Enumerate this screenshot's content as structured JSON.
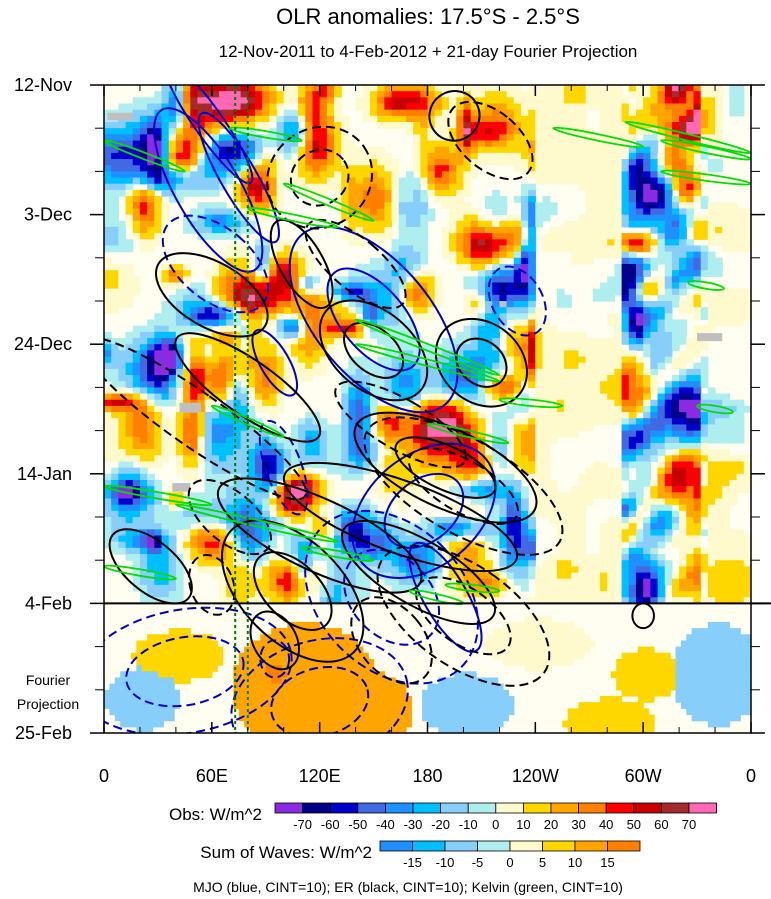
{
  "chart_data": {
    "type": "heatmap",
    "title": "OLR anomalies: 17.5°S - 2.5°S",
    "subtitle": "12-Nov-2011 to 4-Feb-2012 + 21-day Fourier Projection",
    "x_axis": {
      "ticks": [
        {
          "label": "0",
          "lon": 0
        },
        {
          "label": "60E",
          "lon": 60
        },
        {
          "label": "120E",
          "lon": 120
        },
        {
          "label": "180",
          "lon": 180
        },
        {
          "label": "120W",
          "lon": 240
        },
        {
          "label": "60W",
          "lon": 300
        },
        {
          "label": "0",
          "lon": 360
        }
      ],
      "range": [
        0,
        360
      ]
    },
    "y_axis": {
      "ticks": [
        {
          "label": "12-Nov",
          "day": 0
        },
        {
          "label": "3-Dec",
          "day": 21
        },
        {
          "label": "24-Dec",
          "day": 42
        },
        {
          "label": "14-Jan",
          "day": 63
        },
        {
          "label": "4-Feb",
          "day": 84
        },
        {
          "label": "25-Feb",
          "day": 105
        }
      ],
      "range": [
        0,
        105
      ],
      "direction": "downward"
    },
    "divider_day": 84,
    "projection_label": [
      "Fourier",
      "Projection"
    ],
    "reference_lines_lon": [
      73,
      80
    ],
    "obs_colorbar": {
      "label": "Obs: W/m^2",
      "ticks": [
        "-70",
        "-60",
        "-50",
        "-40",
        "-30",
        "-20",
        "-10",
        "0",
        "10",
        "20",
        "30",
        "40",
        "50",
        "60",
        "70"
      ],
      "colors": [
        "#8a2be2",
        "#00008b",
        "#0000cd",
        "#4169e1",
        "#1e90ff",
        "#00bfff",
        "#87cefa",
        "#afeeee",
        "#fffacd",
        "#ffd700",
        "#ffa500",
        "#ff7f00",
        "#ff0000",
        "#c80000",
        "#a52a2a",
        "#ff69b4"
      ]
    },
    "waves_colorbar": {
      "label": "Sum of Waves: W/m^2",
      "ticks": [
        "-15",
        "-10",
        "-5",
        "0",
        "5",
        "10",
        "15"
      ],
      "colors": [
        "#1e90ff",
        "#00bfff",
        "#87cefa",
        "#afeeee",
        "#fffacd",
        "#ffd700",
        "#ffa500",
        "#ff7f00"
      ]
    },
    "contours": [
      {
        "wave": "MJO",
        "color": "#0000cd",
        "cint": 10
      },
      {
        "wave": "ER",
        "color": "#000000",
        "cint": 10
      },
      {
        "wave": "Kelvin",
        "color": "#00e000",
        "cint": 10
      }
    ],
    "footer": "MJO (blue, CINT=10); ER (black, CINT=10); Kelvin (green, CINT=10)"
  }
}
